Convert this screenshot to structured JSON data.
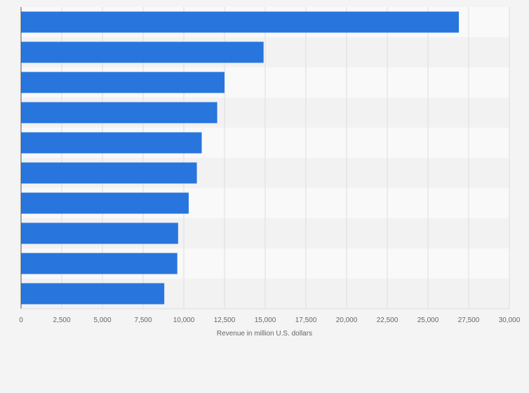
{
  "chart_data": {
    "type": "bar",
    "orientation": "horizontal",
    "categories": [
      "",
      "",
      "",
      "",
      "",
      "",
      "",
      "",
      "",
      ""
    ],
    "values": [
      26900,
      14900,
      12500,
      12050,
      11100,
      10800,
      10300,
      9650,
      9600,
      8800
    ],
    "title": "",
    "xlabel": "Revenue in million U.S. dollars",
    "ylabel": "",
    "xlim": [
      0,
      30000
    ],
    "x_ticks": [
      0,
      2500,
      5000,
      7500,
      10000,
      12500,
      15000,
      17500,
      20000,
      22500,
      25000,
      27500,
      30000
    ],
    "x_tick_labels": [
      "0",
      "2,500",
      "5,000",
      "7,500",
      "10,000",
      "12,500",
      "15,000",
      "17,500",
      "20,000",
      "22,500",
      "25,000",
      "27,500",
      "30,000"
    ],
    "grid": true,
    "legend": "none",
    "colors": {
      "bar": "#2876dd",
      "band_light": "#f9f9f9",
      "band_dark": "#f2f2f2",
      "grid": "#dddddd",
      "axis": "#555555",
      "text": "#666666",
      "background": "#f4f4f4"
    }
  }
}
